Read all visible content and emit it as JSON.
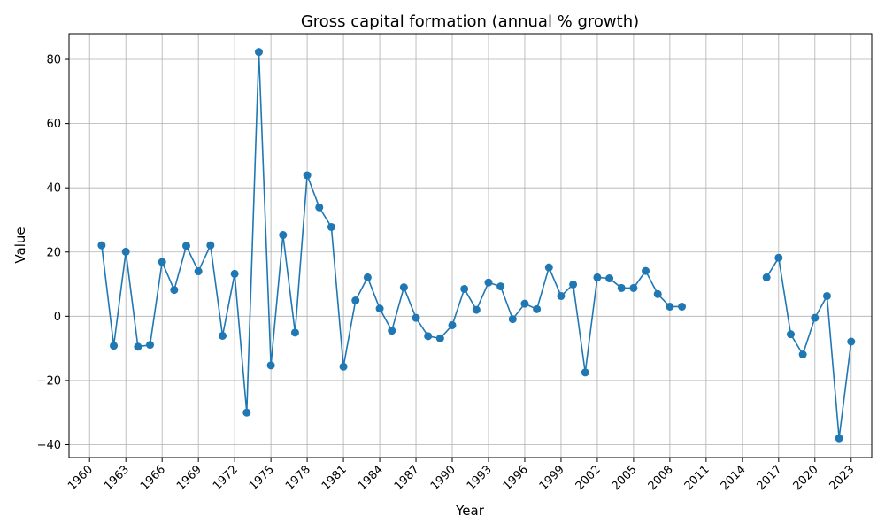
{
  "chart_data": {
    "type": "line",
    "title": "Gross capital formation (annual % growth)",
    "xlabel": "Year",
    "ylabel": "Value",
    "xlim": [
      1958.3,
      2024.7
    ],
    "ylim": [
      -44,
      88
    ],
    "xticks": [
      1960,
      1963,
      1966,
      1969,
      1972,
      1975,
      1978,
      1981,
      1984,
      1987,
      1990,
      1993,
      1996,
      1999,
      2002,
      2005,
      2008,
      2011,
      2014,
      2017,
      2020,
      2023
    ],
    "yticks": [
      -40,
      -20,
      0,
      20,
      40,
      60,
      80
    ],
    "grid": true,
    "color": "#1f77b4",
    "series": [
      {
        "x": [
          1961,
          1962,
          1963,
          1964,
          1965,
          1966,
          1967,
          1968,
          1969,
          1970,
          1971,
          1972,
          1973,
          1974,
          1975,
          1976,
          1977,
          1978,
          1979,
          1980,
          1981,
          1982,
          1983,
          1984,
          1985,
          1986,
          1987,
          1988,
          1989,
          1990,
          1991,
          1992,
          1993,
          1994,
          1995,
          1996,
          1997,
          1998,
          1999,
          2000,
          2001,
          2002,
          2003,
          2004,
          2005,
          2006,
          2007,
          2008,
          2009,
          2010,
          2011,
          2012,
          2013,
          2014,
          2015,
          2016,
          2017,
          2018,
          2019,
          2020,
          2021,
          2022,
          2023
        ],
        "values": [
          22.1,
          -9.2,
          20.1,
          -9.5,
          -8.9,
          16.9,
          8.2,
          21.9,
          14.0,
          22.1,
          -6.1,
          13.2,
          -30.0,
          82.3,
          -15.3,
          25.3,
          -5.1,
          43.9,
          33.9,
          27.8,
          -15.7,
          4.9,
          12.1,
          2.4,
          -4.5,
          9.0,
          -0.5,
          -6.2,
          -6.9,
          -2.8,
          8.5,
          2.0,
          10.5,
          9.3,
          -0.9,
          3.9,
          2.2,
          15.2,
          6.3,
          9.9,
          -17.5,
          12.1,
          11.8,
          8.8,
          8.8,
          14.1,
          6.9,
          3.0,
          3.0,
          null,
          null,
          null,
          null,
          null,
          null,
          12.1,
          18.2,
          -5.6,
          -11.9,
          -0.5,
          6.3,
          -38.0,
          -7.9
        ]
      }
    ]
  }
}
